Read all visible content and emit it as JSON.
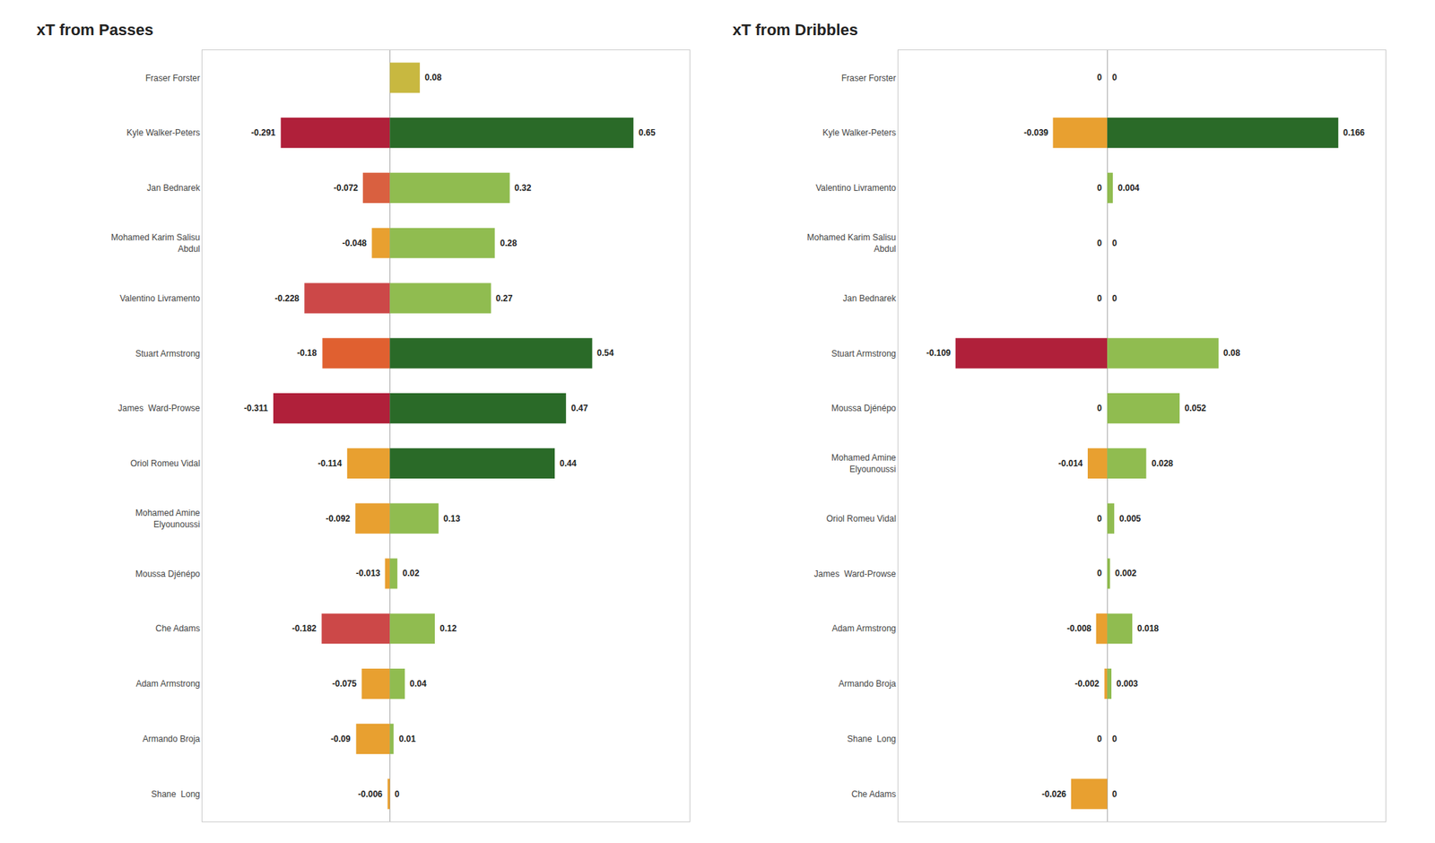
{
  "chart_data": [
    {
      "type": "bar",
      "orientation": "horizontal",
      "title": "xT from Passes",
      "categories": [
        "Fraser Forster",
        "Kyle Walker-Peters",
        "Jan Bednarek",
        "Mohamed Karim Salisu\nAbdul",
        "Valentino Livramento",
        "Stuart Armstrong",
        "James  Ward-Prowse",
        "Oriol Romeu Vidal",
        "Mohamed Amine\nElyounoussi",
        "Moussa Djénépo",
        "Che Adams",
        "Adam Armstrong",
        "Armando Broja",
        "Shane  Long"
      ],
      "series": [
        {
          "values": [
            0,
            -0.291,
            -0.072,
            -0.048,
            -0.228,
            -0.18,
            -0.311,
            -0.114,
            -0.092,
            -0.013,
            -0.182,
            -0.075,
            -0.09,
            -0.006
          ],
          "colors": [
            "#999999",
            "#b0203a",
            "#d96040",
            "#e8a030",
            "#cc4848",
            "#e06030",
            "#b0203a",
            "#e8a030",
            "#e8a030",
            "#e8a030",
            "#cc4848",
            "#e8a030",
            "#e8a030",
            "#e8a030"
          ],
          "value_labels": [
            null,
            "-0.291",
            "-0.072",
            "-0.048",
            "-0.228",
            "-0.18",
            "-0.311",
            "-0.114",
            "-0.092",
            "-0.013",
            "-0.182",
            "-0.075",
            "-0.09",
            "-0.006"
          ]
        },
        {
          "values": [
            0.08,
            0.65,
            0.32,
            0.28,
            0.27,
            0.54,
            0.47,
            0.44,
            0.13,
            0.02,
            0.12,
            0.04,
            0.01,
            0.0
          ],
          "colors": [
            "#c8b840",
            "#2a6a28",
            "#90bc50",
            "#90bc50",
            "#90bc50",
            "#2a6a28",
            "#2a6a28",
            "#2a6a28",
            "#90bc50",
            "#90bc50",
            "#90bc50",
            "#90bc50",
            "#90bc50",
            "#999999"
          ],
          "value_labels": [
            "0.08",
            "0.65",
            "0.32",
            "0.28",
            "0.27",
            "0.54",
            "0.47",
            "0.44",
            "0.13",
            "0.02",
            "0.12",
            "0.04",
            "0.01",
            "0"
          ]
        }
      ],
      "xlim": [
        -0.5,
        0.8
      ],
      "xticks": [],
      "tick_labels": "y",
      "grid": false,
      "data_labels": true
    },
    {
      "type": "bar",
      "orientation": "horizontal",
      "title": "xT from Dribbles",
      "categories": [
        "Fraser Forster",
        "Kyle Walker-Peters",
        "Valentino Livramento",
        "Mohamed Karim Salisu\nAbdul",
        "Jan Bednarek",
        "Stuart Armstrong",
        "Moussa Djénépo",
        "Mohamed Amine\nElyounoussi",
        "Oriol Romeu Vidal",
        "James  Ward-Prowse",
        "Adam Armstrong",
        "Armando Broja",
        "Shane  Long",
        "Che Adams"
      ],
      "series": [
        {
          "values": [
            0,
            -0.039,
            0,
            0,
            0,
            -0.109,
            0,
            -0.014,
            0,
            0,
            -0.008,
            -0.002,
            0,
            -0.026
          ],
          "colors": [
            "#999999",
            "#e8a030",
            "#999999",
            "#999999",
            "#999999",
            "#b0203a",
            "#999999",
            "#e8a030",
            "#999999",
            "#999999",
            "#e8a030",
            "#e8a030",
            "#999999",
            "#e8a030"
          ],
          "value_labels": [
            "0",
            "-0.039",
            "0",
            "0",
            "0",
            "-0.109",
            "0",
            "-0.014",
            "0",
            "0",
            "-0.008",
            "-0.002",
            "0",
            "-0.026"
          ]
        },
        {
          "values": [
            0,
            0.166,
            0.004,
            0,
            0,
            0.08,
            0.052,
            0.028,
            0.005,
            0.002,
            0.018,
            0.003,
            0,
            0
          ],
          "colors": [
            "#999999",
            "#2a6a28",
            "#90bc50",
            "#999999",
            "#999999",
            "#90bc50",
            "#90bc50",
            "#90bc50",
            "#90bc50",
            "#90bc50",
            "#90bc50",
            "#90bc50",
            "#999999",
            "#999999"
          ],
          "value_labels": [
            "0",
            "0.166",
            "0.004",
            "0",
            "0",
            "0.08",
            "0.052",
            "0.028",
            "0.005",
            "0.002",
            "0.018",
            "0.003",
            "0",
            "0"
          ]
        }
      ],
      "xlim": [
        -0.15,
        0.2
      ],
      "xticks": [],
      "tick_labels": "y",
      "grid": false,
      "data_labels": true
    }
  ]
}
